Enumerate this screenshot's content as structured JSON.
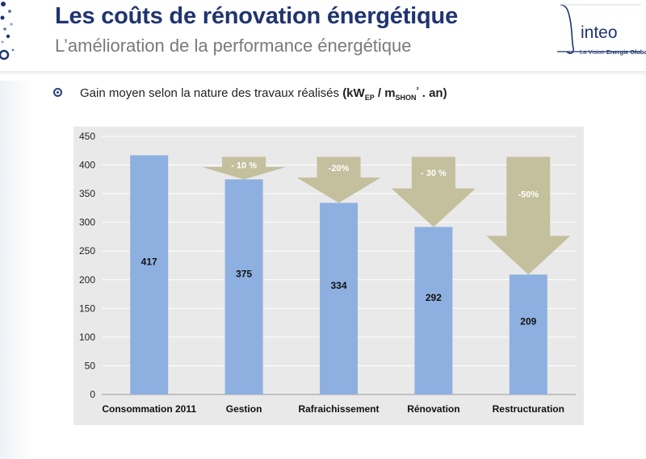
{
  "header": {
    "title": "Les coûts de rénovation énergétique",
    "subtitle": "L’amélioration de la performance énergétique"
  },
  "logo": {
    "word": "inteo",
    "tagline_prefix": "La Vision ",
    "tagline_bold": "Energie Globale"
  },
  "bullet": {
    "icon": "target-bullet-icon",
    "text": "Gain moyen selon la nature des travaux réalisés ",
    "unit_open": "(kW",
    "unit_ep": "EP",
    "unit_mid": " / m",
    "unit_shon": "SHON",
    "unit_sup": "²",
    "unit_close": " . an)"
  },
  "colors": {
    "title": "#1f3470",
    "bar": "#8eb0e0",
    "arrow": "#c4bf9c",
    "chart_bg": "#e9e9e9"
  },
  "chart_data": {
    "type": "bar",
    "categories": [
      "Consommation 2011",
      "Gestion",
      "Rafraichissement",
      "Rénovation",
      "Restructuration"
    ],
    "values": [
      417,
      375,
      334,
      292,
      209
    ],
    "data_labels": [
      "417",
      "375",
      "334",
      "292",
      "209"
    ],
    "ylim": [
      0,
      450
    ],
    "yticks": [
      0,
      50,
      100,
      150,
      200,
      250,
      300,
      350,
      400,
      450
    ],
    "grid": true,
    "annotations": [
      {
        "category": "Gestion",
        "label": "- 10 %",
        "from": 417,
        "to": 375
      },
      {
        "category": "Rafraichissement",
        "label": "-20%",
        "from": 417,
        "to": 334
      },
      {
        "category": "Rénovation",
        "label": "- 30 %",
        "from": 417,
        "to": 292
      },
      {
        "category": "Restructuration",
        "label": "-50%",
        "from": 417,
        "to": 209
      }
    ]
  }
}
